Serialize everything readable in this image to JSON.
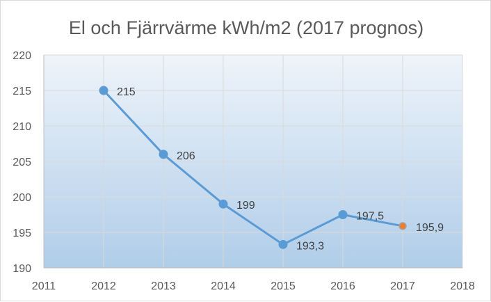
{
  "chart_data": {
    "type": "line",
    "title": "El och Fjärrvärme kWh/m2 (2017 prognos)",
    "xlabel": "",
    "ylabel": "",
    "xlim": [
      2011,
      2018
    ],
    "ylim": [
      190,
      220
    ],
    "x_ticks": [
      "2011",
      "2012",
      "2013",
      "2014",
      "2015",
      "2016",
      "2017",
      "2018"
    ],
    "y_ticks": [
      "190",
      "195",
      "200",
      "205",
      "210",
      "215",
      "220"
    ],
    "grid": true,
    "legend": "none",
    "series": [
      {
        "name": "El och Fjärrvärme kWh/m2",
        "x": [
          2012,
          2013,
          2014,
          2015,
          2016,
          2017
        ],
        "values": [
          215,
          206,
          199,
          193.3,
          197.5,
          195.9
        ],
        "labels": [
          "215",
          "206",
          "199",
          "193,3",
          "197,5",
          "195,9"
        ],
        "highlight_index": 5
      }
    ],
    "colors": {
      "line": "#5b9bd5",
      "marker": "#5b9bd5",
      "highlight_marker": "#ed7d31",
      "highlight_marker_edge": "#a5a5a5",
      "gridline": "#d9d9d9",
      "axis": "#bfbfbf",
      "plot_top": "#eef4fa",
      "plot_bottom": "#b0cde9"
    }
  }
}
